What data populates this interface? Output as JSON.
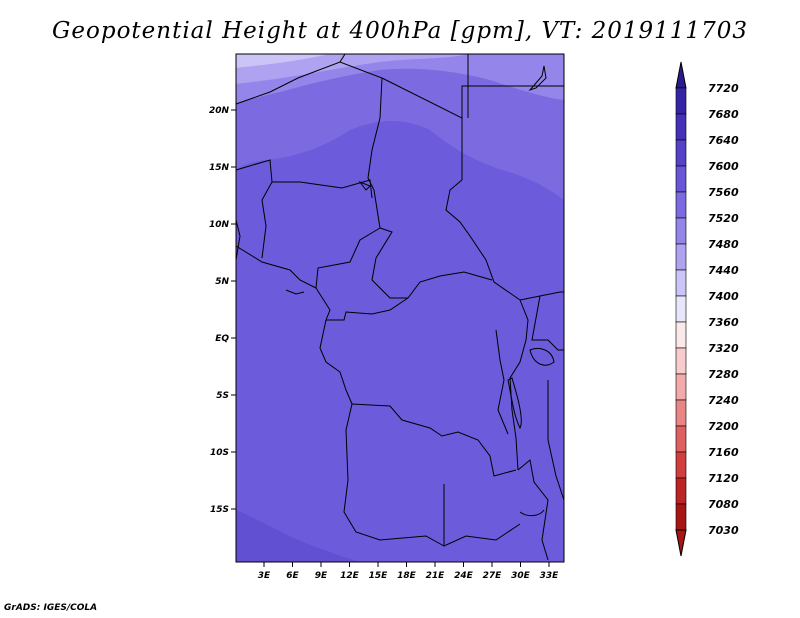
{
  "title": "Geopotential Height at 400hPa [gpm], VT: 2019111703",
  "credit": "GrADS: IGES/COLA",
  "map": {
    "lat_labels": [
      "20N",
      "15N",
      "10N",
      "5N",
      "EQ",
      "5S",
      "10S",
      "15S"
    ],
    "lon_labels": [
      "3E",
      "6E",
      "9E",
      "12E",
      "15E",
      "18E",
      "21E",
      "24E",
      "27E",
      "30E",
      "33E"
    ],
    "lon_range": [
      0,
      35
    ],
    "lat_range": [
      -20,
      24.5
    ]
  },
  "colorbar": {
    "labels": [
      "7720",
      "7680",
      "7640",
      "7600",
      "7560",
      "7520",
      "7480",
      "7440",
      "7400",
      "7360",
      "7320",
      "7280",
      "7240",
      "7200",
      "7160",
      "7120",
      "7080",
      "7030"
    ],
    "colors": [
      "#2a1a90",
      "#3624a6",
      "#4431b8",
      "#5542c8",
      "#6856d6",
      "#7c6be0",
      "#9485ea",
      "#aea2f1",
      "#cbc4f7",
      "#e8e6fb",
      "#fbe8e8",
      "#f8cccc",
      "#f2aaaa",
      "#e98585",
      "#df6060",
      "#d23e3e",
      "#bd2424",
      "#a81515"
    ]
  },
  "colors": {
    "band_lightest": "#b7acf4",
    "band_light": "#9f92ee",
    "band_mid": "#8678e6",
    "band_base": "#6c5bda",
    "band_deep": "#6150d2",
    "border": "#000000"
  }
}
